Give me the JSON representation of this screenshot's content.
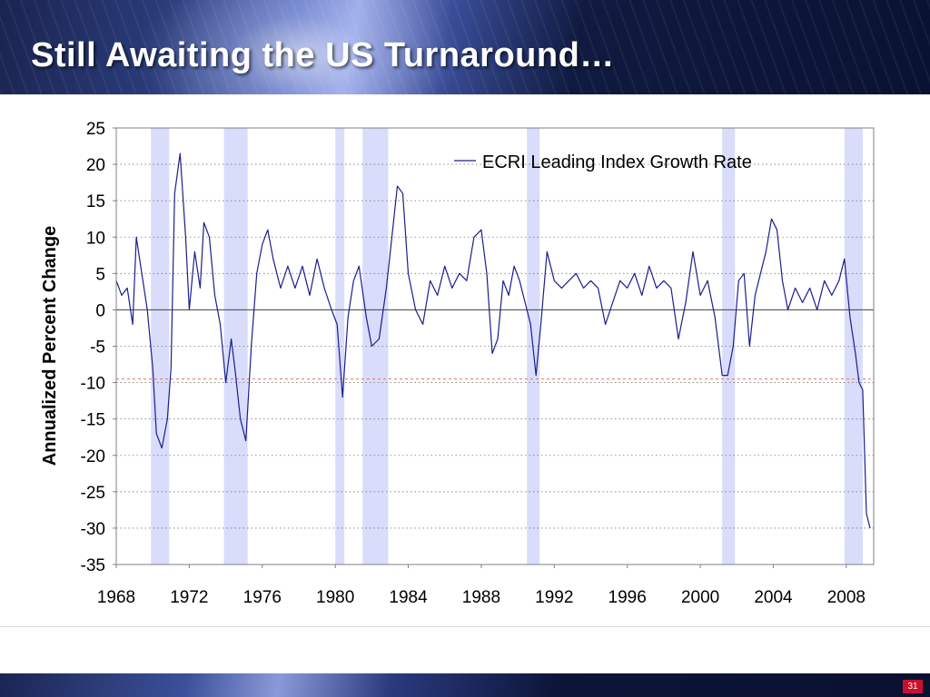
{
  "slide": {
    "title": "Still Awaiting the US Turnaround…",
    "page_number": "31"
  },
  "colors": {
    "line": "#1a1f8c",
    "recession": "#d9dcfb",
    "reference_line": "#e07a60",
    "zero_line": "#404040"
  },
  "chart_data": {
    "type": "line",
    "title": "",
    "xlabel": "",
    "ylabel": "Annualized Percent Change",
    "xlim": [
      1968,
      2009.5
    ],
    "ylim": [
      -35,
      25
    ],
    "x_ticks": [
      1968,
      1972,
      1976,
      1980,
      1984,
      1988,
      1992,
      1996,
      2000,
      2004,
      2008
    ],
    "y_ticks": [
      25,
      20,
      15,
      10,
      5,
      0,
      -5,
      -10,
      -15,
      -20,
      -25,
      -30,
      -35
    ],
    "grid": "horizontal dotted",
    "legend": "top-right",
    "reference_line": -9.5,
    "recessions": [
      [
        1969.9,
        1970.9
      ],
      [
        1973.9,
        1975.2
      ],
      [
        1980.0,
        1980.5
      ],
      [
        1981.5,
        1982.9
      ],
      [
        1990.5,
        1991.2
      ],
      [
        2001.2,
        2001.9
      ],
      [
        2007.9,
        2008.9
      ]
    ],
    "series": [
      {
        "name": "ECRI Leading Index Growth Rate",
        "x": [
          1968.0,
          1968.3,
          1968.6,
          1968.9,
          1969.1,
          1969.4,
          1969.7,
          1970.0,
          1970.2,
          1970.5,
          1970.8,
          1971.0,
          1971.2,
          1971.5,
          1971.8,
          1972.0,
          1972.3,
          1972.6,
          1972.8,
          1973.1,
          1973.4,
          1973.7,
          1974.0,
          1974.3,
          1974.5,
          1974.8,
          1975.1,
          1975.4,
          1975.7,
          1976.0,
          1976.3,
          1976.6,
          1977.0,
          1977.4,
          1977.8,
          1978.2,
          1978.6,
          1979.0,
          1979.4,
          1979.8,
          1980.1,
          1980.4,
          1980.7,
          1981.0,
          1981.3,
          1981.7,
          1982.0,
          1982.4,
          1982.8,
          1983.1,
          1983.4,
          1983.7,
          1984.0,
          1984.4,
          1984.8,
          1985.2,
          1985.6,
          1986.0,
          1986.4,
          1986.8,
          1987.2,
          1987.6,
          1988.0,
          1988.3,
          1988.6,
          1988.9,
          1989.2,
          1989.5,
          1989.8,
          1990.1,
          1990.4,
          1990.7,
          1991.0,
          1991.3,
          1991.6,
          1992.0,
          1992.4,
          1992.8,
          1993.2,
          1993.6,
          1994.0,
          1994.4,
          1994.8,
          1995.2,
          1995.6,
          1996.0,
          1996.4,
          1996.8,
          1997.2,
          1997.6,
          1998.0,
          1998.4,
          1998.8,
          1999.2,
          1999.6,
          2000.0,
          2000.4,
          2000.8,
          2001.2,
          2001.5,
          2001.8,
          2002.1,
          2002.4,
          2002.7,
          2003.0,
          2003.3,
          2003.6,
          2003.9,
          2004.2,
          2004.5,
          2004.8,
          2005.2,
          2005.6,
          2006.0,
          2006.4,
          2006.8,
          2007.2,
          2007.6,
          2007.9,
          2008.2,
          2008.5,
          2008.7,
          2008.9,
          2009.1,
          2009.3
        ],
        "y": [
          4,
          2,
          3,
          -2,
          10,
          5,
          0,
          -8,
          -17,
          -19,
          -15,
          -8,
          16,
          21.5,
          10,
          0,
          8,
          3,
          12,
          10,
          2,
          -2,
          -10,
          -4,
          -8,
          -15,
          -18,
          -5,
          5,
          9,
          11,
          7,
          3,
          6,
          3,
          6,
          2,
          7,
          3,
          0,
          -2,
          -12,
          -1,
          4,
          6,
          -1,
          -5,
          -4,
          3,
          10,
          17,
          16,
          5,
          0,
          -2,
          4,
          2,
          6,
          3,
          5,
          4,
          10,
          11,
          5,
          -6,
          -4,
          4,
          2,
          6,
          4,
          1,
          -2,
          -9,
          -1,
          8,
          4,
          3,
          4,
          5,
          3,
          4,
          3,
          -2,
          1,
          4,
          3,
          5,
          2,
          6,
          3,
          4,
          3,
          -4,
          1,
          8,
          2,
          4,
          -1,
          -9,
          -9,
          -5,
          4,
          5,
          -5,
          2,
          5,
          8,
          12.5,
          11,
          4,
          0,
          3,
          1,
          3,
          0,
          4,
          2,
          4,
          7,
          -1,
          -6,
          -10,
          -11,
          -28,
          -30
        ]
      }
    ]
  }
}
